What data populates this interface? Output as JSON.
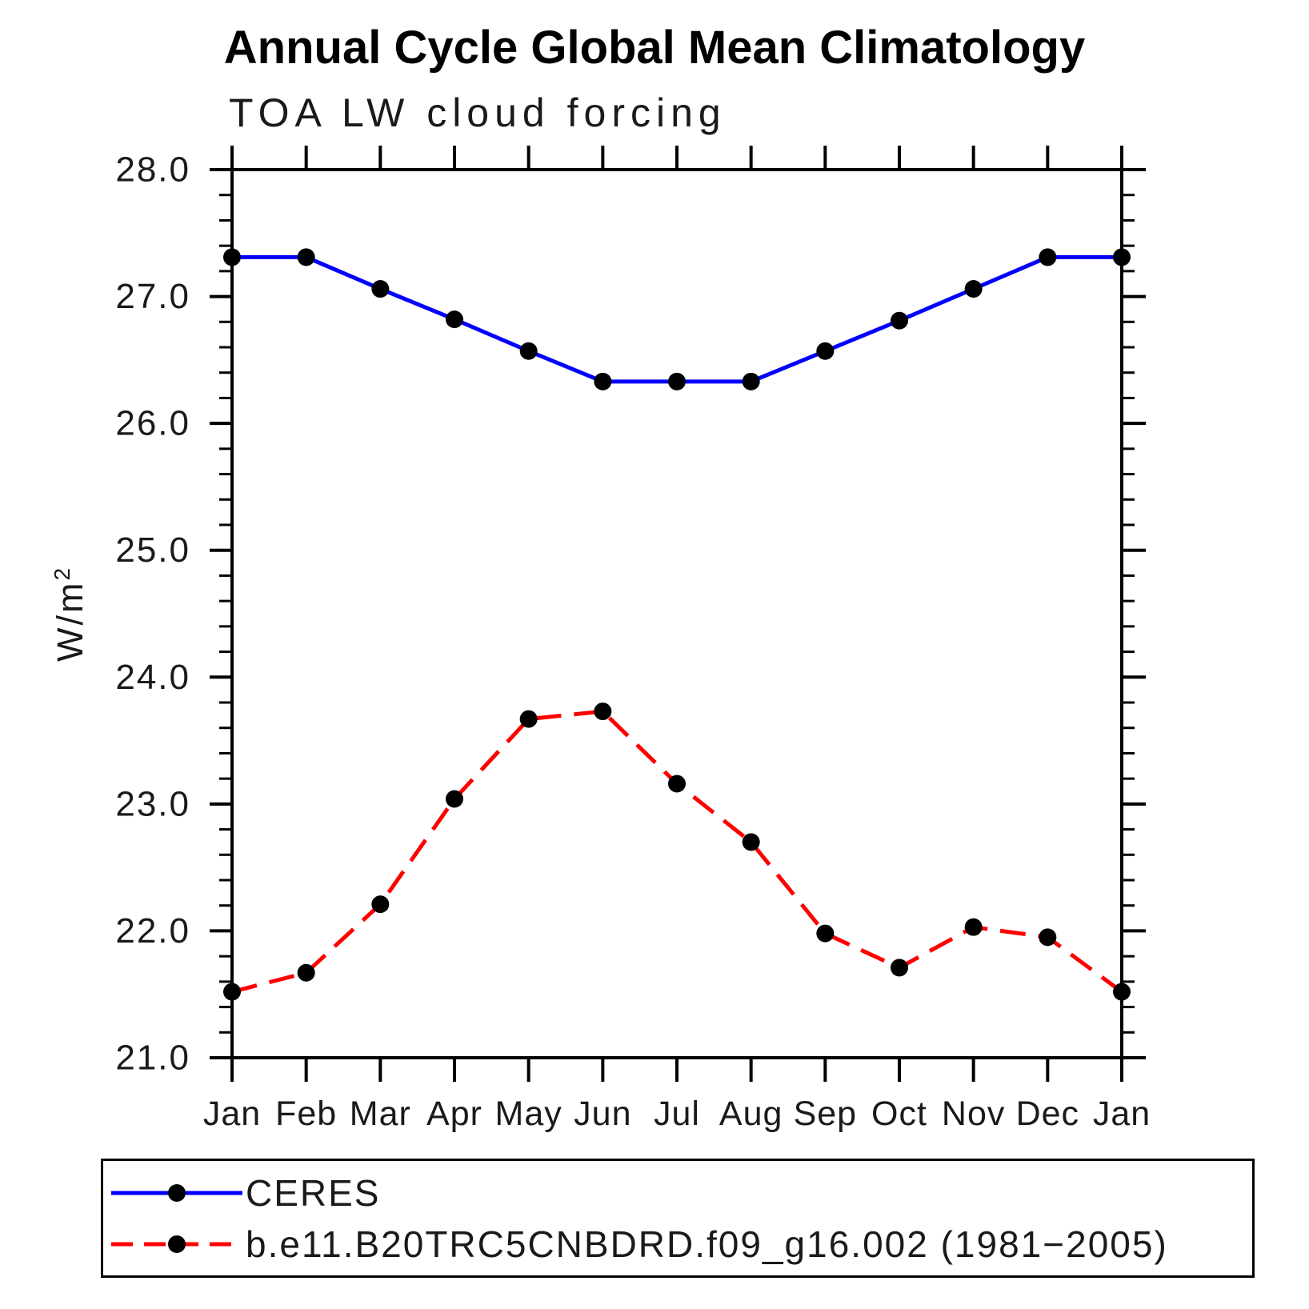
{
  "title": "Annual Cycle Global Mean Climatology",
  "subtitle": "TOA LW cloud forcing",
  "ylabel": {
    "base": "W/m",
    "exponent": "2"
  },
  "colors": {
    "axis": "#000000",
    "background": "#ffffff",
    "marker": "#000000"
  },
  "chart_data": {
    "type": "line",
    "categories": [
      "Jan",
      "Feb",
      "Mar",
      "Apr",
      "May",
      "Jun",
      "Jul",
      "Aug",
      "Sep",
      "Oct",
      "Nov",
      "Dec",
      "Jan"
    ],
    "xlabel": "",
    "ylabel": "W/m2",
    "ylim": [
      21.0,
      28.0
    ],
    "ytick_values": [
      21,
      22,
      23,
      24,
      25,
      26,
      27,
      28
    ],
    "ytick_labels": [
      "21.0",
      "22.0",
      "23.0",
      "24.0",
      "25.0",
      "26.0",
      "27.0",
      "28.0"
    ],
    "minor_tick_interval": 0.2,
    "grid": false,
    "legend_position": "bottom",
    "marker": {
      "shape": "circle",
      "color": "#000000"
    },
    "series": [
      {
        "name": "CERES",
        "color": "#0000ff",
        "style": "solid",
        "values": [
          27.31,
          27.31,
          27.06,
          26.82,
          26.57,
          26.33,
          26.33,
          26.33,
          26.57,
          26.81,
          27.06,
          27.31,
          27.31
        ]
      },
      {
        "name": "b.e11.B20TRC5CNBDRD.f09_g16.002 (1981−2005)",
        "color": "#ff0000",
        "style": "dashed",
        "values": [
          21.52,
          21.67,
          22.21,
          23.04,
          23.67,
          23.73,
          23.16,
          22.7,
          21.98,
          21.71,
          22.03,
          21.95,
          21.52
        ]
      }
    ]
  }
}
